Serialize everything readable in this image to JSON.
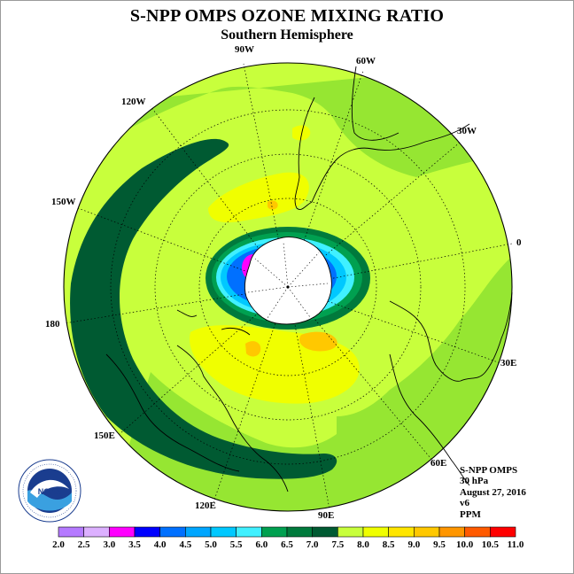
{
  "title": "S-NPP OMPS OZONE MIXING RATIO",
  "subtitle": "Southern Hemisphere",
  "longitude_labels": {
    "w90": "90W",
    "w60": "60W",
    "w30": "30W",
    "zero": "0",
    "e30": "30E",
    "e60": "60E",
    "e90": "90E",
    "e120": "120E",
    "e150": "150E",
    "l180": "180",
    "w150": "150W",
    "w120": "120W"
  },
  "info": {
    "instrument": "S-NPP OMPS",
    "level": "30 hPa",
    "date": "August 27, 2016",
    "version": "v6",
    "units": "PPM"
  },
  "logo_text": "NOAA",
  "colorbar": {
    "ticks": [
      "2.0",
      "2.5",
      "3.0",
      "3.5",
      "4.0",
      "4.5",
      "5.0",
      "5.5",
      "6.0",
      "6.5",
      "7.0",
      "7.5",
      "8.0",
      "8.5",
      "9.0",
      "9.5",
      "10.0",
      "10.5",
      "11.0"
    ],
    "colors": [
      "#b57aff",
      "#dcb0ff",
      "#ff00ff",
      "#0000ff",
      "#0070ff",
      "#00a6ff",
      "#00c8ff",
      "#40f0ff",
      "#00a050",
      "#007a3c",
      "#005a32",
      "#c8ff3c",
      "#f0ff00",
      "#ffe600",
      "#ffc800",
      "#ff9600",
      "#ff5a00",
      "#ff0000",
      "#8b4a2b"
    ]
  },
  "map_colors": {
    "background": "#c8ff3c",
    "light_green": "#96e632",
    "dark_green": "#005a32",
    "yellow": "#f0ff00",
    "orange": "#ffc800",
    "vortex_dark": "#007a3c",
    "vortex_mid": "#00a050",
    "vortex_cyan": "#40f0ff",
    "vortex_blue": "#0070ff",
    "vortex_magenta": "#ff00ff",
    "pole_fill": "#ffffff"
  }
}
